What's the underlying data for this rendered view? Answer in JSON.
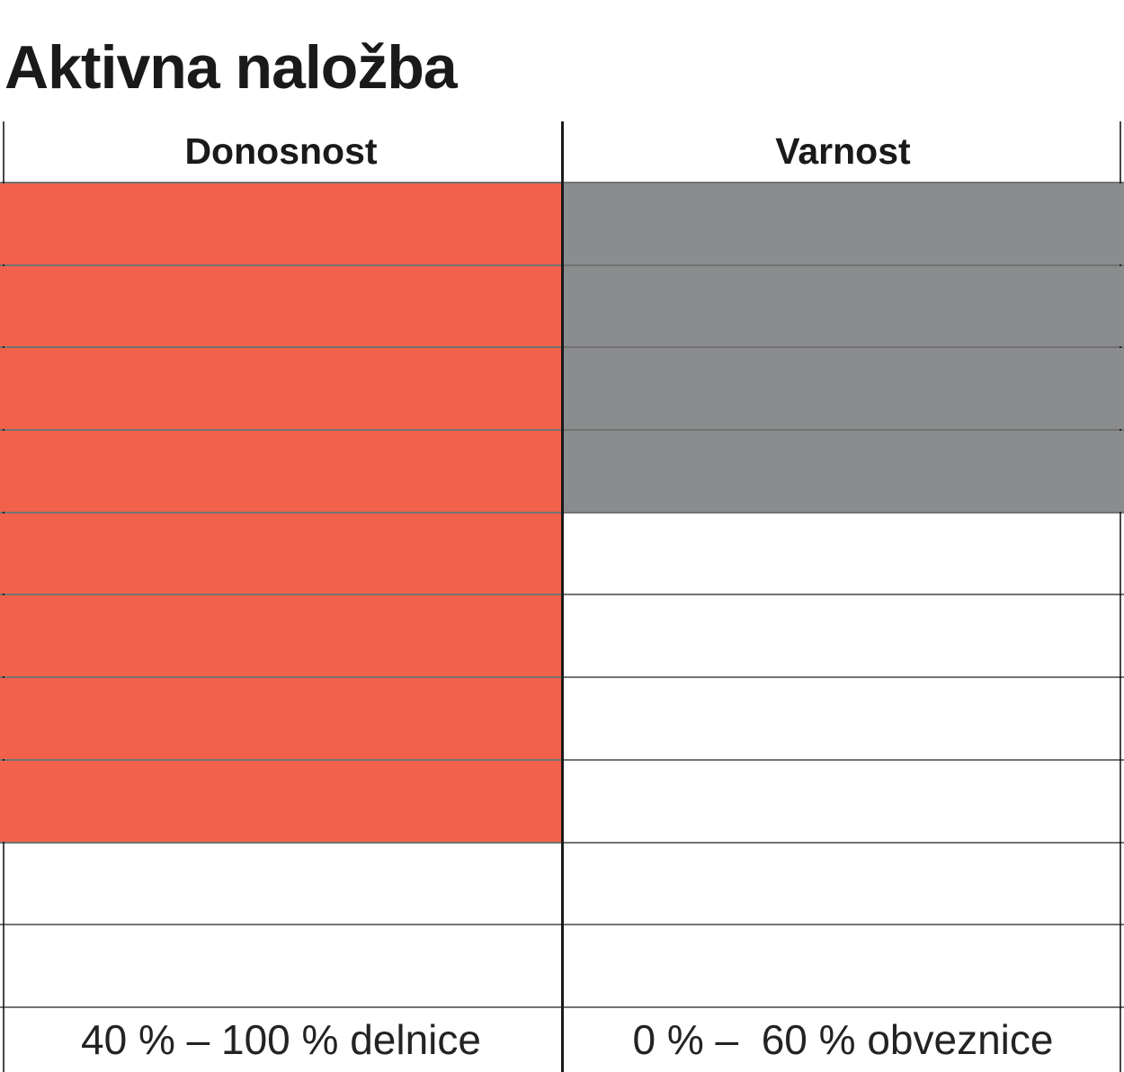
{
  "title": "Aktivna naložba",
  "chart_data": {
    "type": "table",
    "title": "Aktivna naložba",
    "total_rows": 10,
    "fill_direction": "from_top",
    "columns": [
      {
        "label": "Donosnost",
        "filled_rows": 8,
        "fill_color": "#F2614B",
        "footer": "40 % – 100 % delnice"
      },
      {
        "label": "Varnost",
        "filled_rows": 4,
        "fill_color": "#8A8C8E",
        "footer": "0 % –  60 % obveznice"
      }
    ]
  },
  "colors": {
    "donosnost_fill": "#F2614B",
    "varnost_fill": "#8A8C8E",
    "grid_line": "rgba(0,0,0,0.55)",
    "divider": "#1B1B1B",
    "text": "#1A1A1A"
  }
}
